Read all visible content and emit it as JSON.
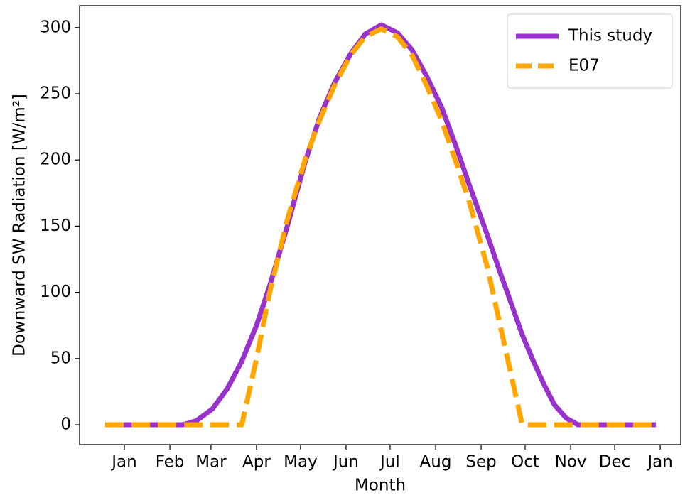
{
  "chart_data": {
    "type": "line",
    "xlabel": "Month",
    "ylabel": "Downward SW Radiation [W/m²]",
    "xlim": [
      -29.5,
      380
    ],
    "ylim": [
      -15,
      316.5
    ],
    "xticks": [
      {
        "value": 1,
        "label": "Jan"
      },
      {
        "value": 32,
        "label": "Feb"
      },
      {
        "value": 60,
        "label": "Mar"
      },
      {
        "value": 91,
        "label": "Apr"
      },
      {
        "value": 121,
        "label": "May"
      },
      {
        "value": 152,
        "label": "Jun"
      },
      {
        "value": 182,
        "label": "Jul"
      },
      {
        "value": 213,
        "label": "Aug"
      },
      {
        "value": 244,
        "label": "Sep"
      },
      {
        "value": 274,
        "label": "Oct"
      },
      {
        "value": 305,
        "label": "Nov"
      },
      {
        "value": 335,
        "label": "Dec"
      },
      {
        "value": 366,
        "label": "Jan"
      }
    ],
    "yticks": [
      0,
      50,
      100,
      150,
      200,
      250,
      300
    ],
    "legend": "upper right",
    "series": [
      {
        "name": "This study",
        "color": "#9932cc",
        "dash": "solid",
        "x": [
          -12,
          41,
          50,
          61,
          71,
          81,
          91,
          100,
          112,
          124,
          134,
          144,
          155,
          165,
          176,
          187,
          197,
          207,
          217,
          227,
          236,
          248,
          256,
          265,
          272,
          280,
          287,
          294,
          302,
          310,
          363
        ],
        "values": [
          0,
          0,
          3,
          12,
          27,
          48,
          75,
          105,
          150,
          198,
          232,
          258,
          280,
          295,
          302,
          296,
          283,
          263,
          240,
          210,
          181,
          144,
          118,
          90,
          68,
          47,
          30,
          15,
          5,
          0,
          0
        ]
      },
      {
        "name": "E07",
        "color": "#ffa500",
        "dash": "dashed",
        "x": [
          -12,
          81,
          91,
          100,
          112,
          124,
          134,
          144,
          155,
          165,
          176,
          187,
          197,
          207,
          217,
          227,
          236,
          248,
          258,
          265,
          272,
          363
        ],
        "values": [
          0,
          0,
          50,
          100,
          155,
          200,
          230,
          256,
          279,
          293,
          299,
          293,
          279,
          256,
          230,
          198,
          168,
          120,
          70,
          35,
          0,
          0
        ]
      }
    ]
  }
}
